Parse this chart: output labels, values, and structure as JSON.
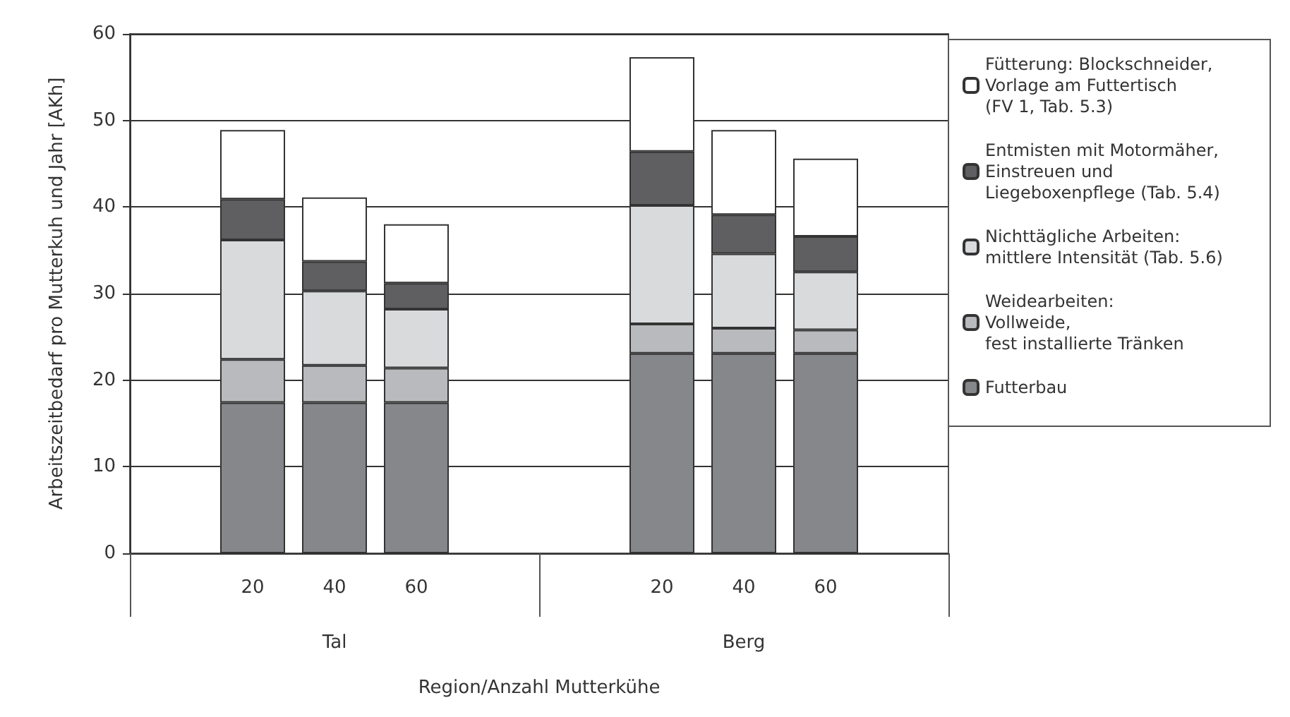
{
  "chart_data": {
    "type": "bar",
    "stacked": true,
    "xlabel": "Region/Anzahl Mutterkühe",
    "ylabel": "Arbeitszeitbedarf pro Mutterkuh und Jahr [AKh]",
    "categories": [
      null,
      "20",
      "40",
      "60",
      null,
      null,
      "20",
      "40",
      "60",
      null
    ],
    "annotations": [
      "Tal",
      "Berg"
    ],
    "series": [
      {
        "name": "Futterbau",
        "color": "#86878b",
        "values": [
          null,
          17.4,
          17.4,
          17.4,
          null,
          null,
          23.1,
          23.1,
          23.1,
          null
        ]
      },
      {
        "name": "Weidearbeiten:\nVollweide,\nfest installierte Tränken",
        "color": "#b9babd",
        "values": [
          null,
          5.0,
          4.3,
          4.0,
          null,
          null,
          3.4,
          2.9,
          2.7,
          null
        ]
      },
      {
        "name": "Nichttägliche Arbeiten:\nmittlere Intensität (Tab. 5.6)",
        "color": "#d9dadc",
        "values": [
          null,
          13.8,
          8.6,
          6.8,
          null,
          null,
          13.7,
          8.6,
          6.7,
          null
        ]
      },
      {
        "name": "Entmisten mit Motormäher,\nEinstreuen und\nLiegeboxenpflege (Tab. 5.4)",
        "color": "#5f5f61",
        "values": [
          null,
          4.7,
          3.4,
          3.0,
          null,
          null,
          6.2,
          4.5,
          4.1,
          null
        ]
      },
      {
        "name": "Fütterung: Blockschneider,\nVorlage am Futtertisch\n(FV 1, Tab. 5.3)",
        "color": "#ffffff",
        "values": [
          null,
          8.0,
          7.4,
          6.8,
          null,
          null,
          10.9,
          9.8,
          9.0,
          null
        ]
      }
    ],
    "ylim": [
      0,
      60
    ],
    "yticks": [
      0,
      10,
      20,
      30,
      40,
      50,
      60
    ],
    "grid": "y",
    "legend": "right"
  }
}
